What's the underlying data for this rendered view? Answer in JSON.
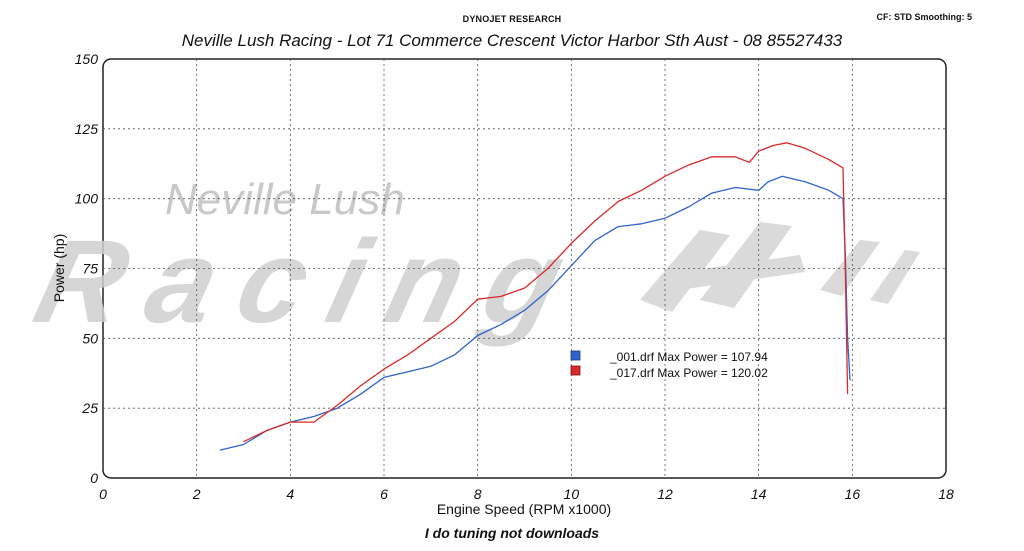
{
  "header": {
    "research": "DYNOJET RESEARCH",
    "cf_info": "CF: STD  Smoothing: 5",
    "subtitle": "Neville Lush Racing  - Lot 71 Commerce Crescent  Victor Harbor Sth Aust  - 08 85527433"
  },
  "footer": {
    "text": "I do tuning not downloads"
  },
  "watermark": {
    "line1": "Neville Lush",
    "line2": "Racing"
  },
  "colors": {
    "run1": "#2f63c9",
    "run2": "#d92a2a",
    "grid": "#555555",
    "plot_bg": "#ffffff"
  },
  "chart_data": {
    "type": "line",
    "title": "",
    "xlabel": "Engine Speed (RPM x1000)",
    "ylabel": "Power (hp)",
    "xlim": [
      0,
      18
    ],
    "ylim": [
      0,
      150
    ],
    "xticks": [
      0,
      2,
      4,
      6,
      8,
      10,
      12,
      14,
      16,
      18
    ],
    "yticks": [
      0,
      25,
      50,
      75,
      100,
      125,
      150
    ],
    "grid": true,
    "legend_placement": "center",
    "series": [
      {
        "name": "_001.drf Max Power = 107.94",
        "color": "#2f63c9",
        "x": [
          2.5,
          3.0,
          3.5,
          4.0,
          4.5,
          5.0,
          5.5,
          6.0,
          6.5,
          7.0,
          7.5,
          8.0,
          8.5,
          9.0,
          9.5,
          10.0,
          10.5,
          11.0,
          11.5,
          12.0,
          12.5,
          13.0,
          13.5,
          14.0,
          14.2,
          14.5,
          15.0,
          15.5,
          15.8,
          15.85,
          15.9,
          15.95
        ],
        "y": [
          10,
          12,
          17,
          20,
          22,
          25,
          30,
          36,
          38,
          40,
          44,
          51,
          55,
          60,
          67,
          76,
          85,
          90,
          91,
          93,
          97,
          102,
          104,
          103,
          106,
          108,
          106,
          103,
          100,
          80,
          50,
          35
        ]
      },
      {
        "name": "_017.drf Max Power = 120.02",
        "color": "#d92a2a",
        "x": [
          3.0,
          3.5,
          4.0,
          4.5,
          5.0,
          5.5,
          6.0,
          6.5,
          7.0,
          7.5,
          8.0,
          8.5,
          9.0,
          9.5,
          10.0,
          10.5,
          11.0,
          11.5,
          12.0,
          12.5,
          13.0,
          13.5,
          13.8,
          14.0,
          14.3,
          14.6,
          15.0,
          15.5,
          15.8,
          15.85,
          15.9
        ],
        "y": [
          13,
          17,
          20,
          20,
          26,
          33,
          39,
          44,
          50,
          56,
          64,
          65,
          68,
          75,
          84,
          92,
          99,
          103,
          108,
          112,
          115,
          115,
          113,
          117,
          119,
          120,
          118,
          114,
          111,
          75,
          30
        ]
      }
    ]
  }
}
